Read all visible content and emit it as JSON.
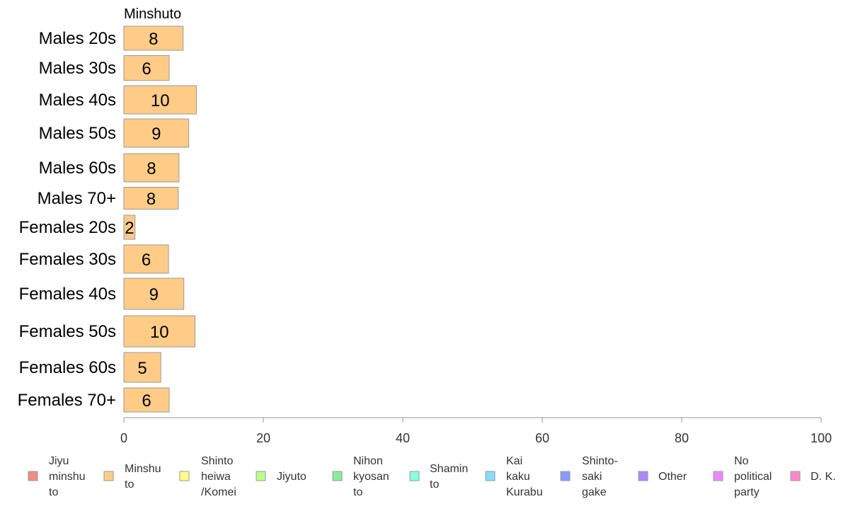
{
  "chart_data": {
    "type": "bar",
    "orientation": "horizontal",
    "stacked": true,
    "panel_title": "Minshuto",
    "categories": [
      "Males 20s",
      "Males 30s",
      "Males 40s",
      "Males 50s",
      "Males 60s",
      "Males 70+",
      "Females 20s",
      "Females 30s",
      "Females 40s",
      "Females 50s",
      "Females 60s",
      "Females 70+"
    ],
    "series": [
      {
        "name": "Minshuto",
        "color": "#ffcc88",
        "values": [
          8.5,
          6.5,
          10.4,
          9.3,
          7.9,
          7.8,
          1.6,
          6.4,
          8.6,
          10.2,
          5.3,
          6.5
        ],
        "labels": [
          "8",
          "6",
          "10",
          "9",
          "8",
          "8",
          "2",
          "6",
          "9",
          "10",
          "5",
          "6"
        ]
      }
    ],
    "xlim": [
      0,
      100
    ],
    "xticks": [
      "0",
      "20",
      "40",
      "60",
      "80",
      "100"
    ],
    "xlabel": "",
    "ylabel": "",
    "grid": false,
    "legend_position": "bottom",
    "legend": [
      {
        "lines": [
          "Jiyu",
          "minshu",
          "to"
        ],
        "color": "#f28b82"
      },
      {
        "lines": [
          "Minshu",
          "to"
        ],
        "color": "#ffcc88"
      },
      {
        "lines": [
          "Shinto",
          "heiwa",
          "/Komei"
        ],
        "color": "#ffff88"
      },
      {
        "lines": [
          "Jiyuto"
        ],
        "color": "#bbff88"
      },
      {
        "lines": [
          "Nihon",
          "kyosan",
          "to"
        ],
        "color": "#88ee99"
      },
      {
        "lines": [
          "Shamin",
          "to"
        ],
        "color": "#88ffdd"
      },
      {
        "lines": [
          "Kai",
          "kaku",
          "Kurabu"
        ],
        "color": "#88ddff"
      },
      {
        "lines": [
          "Shinto-",
          "saki",
          "gake"
        ],
        "color": "#8899ff"
      },
      {
        "lines": [
          "Other"
        ],
        "color": "#aa88ff"
      },
      {
        "lines": [
          "No",
          "political",
          "party"
        ],
        "color": "#ee88ff"
      },
      {
        "lines": [
          "D. K."
        ],
        "color": "#ff88cc"
      }
    ]
  }
}
